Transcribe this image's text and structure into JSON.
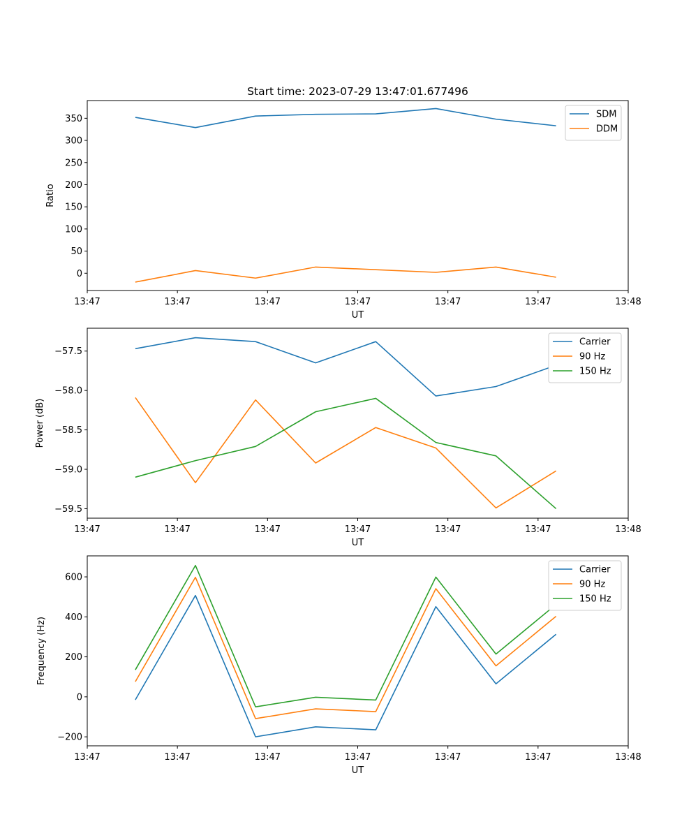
{
  "figure_title": "Start time: 2023-07-29 13:47:01.677496",
  "chart_data": [
    {
      "type": "line",
      "title": "Start time: 2023-07-29 13:47:01.677496",
      "xlabel": "UT",
      "ylabel": "Ratio",
      "x": [
        1,
        2,
        3,
        4,
        5,
        6,
        7,
        8
      ],
      "xlim": [
        0.2,
        9.2
      ],
      "xticks": [
        0.2,
        1.7,
        3.2,
        4.7,
        6.2,
        7.7,
        9.2
      ],
      "xtick_labels": [
        "13:47",
        "13:47",
        "13:47",
        "13:47",
        "13:47",
        "13:47",
        "13:48"
      ],
      "ylim": [
        -39,
        390
      ],
      "yticks": [
        0,
        50,
        100,
        150,
        200,
        250,
        300,
        350
      ],
      "ytick_labels": [
        "0",
        "50",
        "100",
        "150",
        "200",
        "250",
        "300",
        "350"
      ],
      "legend": "top-right",
      "series": [
        {
          "name": "SDM",
          "color": "#1f77b4",
          "values": [
            352,
            329,
            355,
            359,
            360,
            372,
            348,
            333
          ]
        },
        {
          "name": "DDM",
          "color": "#ff7f0e",
          "values": [
            -20,
            6,
            -11,
            14,
            8,
            2,
            14,
            -9
          ]
        }
      ]
    },
    {
      "type": "line",
      "title": "",
      "xlabel": "UT",
      "ylabel": "Power (dB)",
      "x": [
        1,
        2,
        3,
        4,
        5,
        6,
        7,
        8
      ],
      "xlim": [
        0.2,
        9.2
      ],
      "xticks": [
        0.2,
        1.7,
        3.2,
        4.7,
        6.2,
        7.7,
        9.2
      ],
      "xtick_labels": [
        "13:47",
        "13:47",
        "13:47",
        "13:47",
        "13:47",
        "13:47",
        "13:48"
      ],
      "ylim": [
        -59.62,
        -57.21
      ],
      "yticks": [
        -59.5,
        -59.0,
        -58.5,
        -58.0,
        -57.5
      ],
      "ytick_labels": [
        "−59.5",
        "−59.0",
        "−58.5",
        "−58.0",
        "−57.5"
      ],
      "legend": "top-right",
      "series": [
        {
          "name": "Carrier",
          "color": "#1f77b4",
          "values": [
            -57.47,
            -57.33,
            -57.38,
            -57.65,
            -57.38,
            -58.07,
            -57.95,
            -57.68
          ]
        },
        {
          "name": "90 Hz",
          "color": "#ff7f0e",
          "values": [
            -58.09,
            -59.17,
            -58.12,
            -58.92,
            -58.47,
            -58.73,
            -59.49,
            -59.02
          ]
        },
        {
          "name": "150 Hz",
          "color": "#2ca02c",
          "values": [
            -59.1,
            -58.89,
            -58.71,
            -58.27,
            -58.1,
            -58.66,
            -58.83,
            -59.5
          ]
        }
      ]
    },
    {
      "type": "line",
      "title": "",
      "xlabel": "UT",
      "ylabel": "Frequency (Hz)",
      "x": [
        1,
        2,
        3,
        4,
        5,
        6,
        7,
        8
      ],
      "xlim": [
        0.2,
        9.2
      ],
      "xticks": [
        0.2,
        1.7,
        3.2,
        4.7,
        6.2,
        7.7,
        9.2
      ],
      "xtick_labels": [
        "13:47",
        "13:47",
        "13:47",
        "13:47",
        "13:47",
        "13:47",
        "13:48"
      ],
      "ylim": [
        -245,
        705
      ],
      "yticks": [
        -200,
        0,
        200,
        400,
        600
      ],
      "ytick_labels": [
        "−200",
        "0",
        "200",
        "400",
        "600"
      ],
      "legend": "top-right",
      "series": [
        {
          "name": "Carrier",
          "color": "#1f77b4",
          "values": [
            -15,
            507,
            -200,
            -150,
            -165,
            451,
            65,
            313
          ]
        },
        {
          "name": "90 Hz",
          "color": "#ff7f0e",
          "values": [
            76,
            598,
            -109,
            -60,
            -74,
            541,
            155,
            403
          ]
        },
        {
          "name": "150 Hz",
          "color": "#2ca02c",
          "values": [
            135,
            657,
            -50,
            -2,
            -16,
            599,
            214,
            462
          ]
        }
      ]
    }
  ]
}
